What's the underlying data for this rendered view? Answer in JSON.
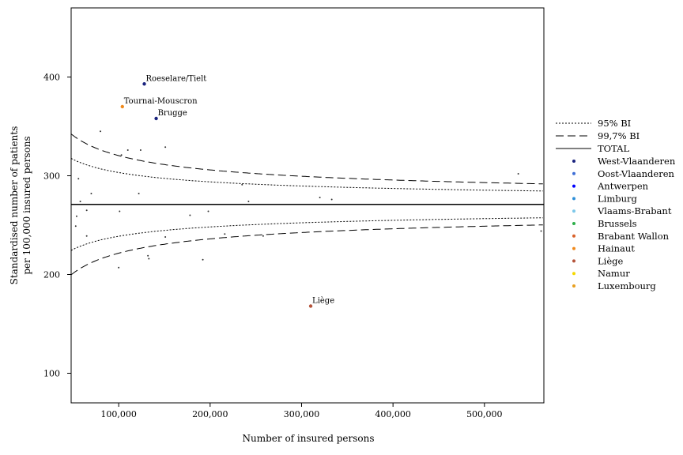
{
  "chart_data": {
    "type": "scatter",
    "title": "",
    "xlabel": "Number of insured persons",
    "ylabel_line1": "Standardised number of patients",
    "ylabel_line2": "per 100,000 insured persons",
    "xlim": [
      48000,
      565000
    ],
    "ylim": [
      70,
      470
    ],
    "x_ticks": [
      {
        "value": 100000,
        "label": "100,000"
      },
      {
        "value": 200000,
        "label": "200,000"
      },
      {
        "value": 300000,
        "label": "300,000"
      },
      {
        "value": 400000,
        "label": "400,000"
      },
      {
        "value": 500000,
        "label": "500,000"
      }
    ],
    "y_ticks": [
      {
        "value": 100,
        "label": "100"
      },
      {
        "value": 200,
        "label": "200"
      },
      {
        "value": 300,
        "label": "300"
      },
      {
        "value": 400,
        "label": "400"
      }
    ],
    "total": 271,
    "legend": {
      "placement": "right",
      "lines": [
        {
          "key": "ci95",
          "label": "95% BI",
          "dash": "2,2"
        },
        {
          "key": "ci997",
          "label": "99,7% BI",
          "dash": "10,5"
        },
        {
          "key": "total",
          "label": "TOTAL",
          "dash": ""
        }
      ],
      "provinces": [
        {
          "label": "West-Vlaanderen",
          "color": "#1a237e"
        },
        {
          "label": "Oost-Vlaanderen",
          "color": "#3f6fd6"
        },
        {
          "label": "Antwerpen",
          "color": "#0000ff"
        },
        {
          "label": "Limburg",
          "color": "#2e8fd8"
        },
        {
          "label": "Vlaams-Brabant",
          "color": "#7ec8ea"
        },
        {
          "label": "Brussels",
          "color": "#2eaf4a"
        },
        {
          "label": "Brabant Wallon",
          "color": "#d9622b"
        },
        {
          "label": "Hainaut",
          "color": "#f08a1c"
        },
        {
          "label": "Liège",
          "color": "#b5533a"
        },
        {
          "label": "Namur",
          "color": "#f5d800"
        },
        {
          "label": "Luxembourg",
          "color": "#e8a020"
        }
      ]
    },
    "labeled_points": [
      {
        "label": "Roeselare/Tielt",
        "x": 128000,
        "y": 393,
        "color": "#1a237e"
      },
      {
        "label": "Tournai-Mouscron",
        "x": 104000,
        "y": 370,
        "color": "#f08a1c"
      },
      {
        "label": "Brugge",
        "x": 141000,
        "y": 358,
        "color": "#1a237e"
      },
      {
        "label": "Liège",
        "x": 310000,
        "y": 168,
        "color": "#b5533a"
      }
    ],
    "points": [
      {
        "x": 80000,
        "y": 345
      },
      {
        "x": 103000,
        "y": 321
      },
      {
        "x": 110000,
        "y": 326
      },
      {
        "x": 124000,
        "y": 326
      },
      {
        "x": 151000,
        "y": 329
      },
      {
        "x": 56000,
        "y": 297
      },
      {
        "x": 58000,
        "y": 274
      },
      {
        "x": 70000,
        "y": 282
      },
      {
        "x": 122000,
        "y": 282
      },
      {
        "x": 235000,
        "y": 291
      },
      {
        "x": 242000,
        "y": 274
      },
      {
        "x": 320000,
        "y": 278
      },
      {
        "x": 333000,
        "y": 276
      },
      {
        "x": 537000,
        "y": 302
      },
      {
        "x": 54000,
        "y": 259
      },
      {
        "x": 53000,
        "y": 249
      },
      {
        "x": 65000,
        "y": 265
      },
      {
        "x": 101000,
        "y": 264
      },
      {
        "x": 178000,
        "y": 260
      },
      {
        "x": 198000,
        "y": 264
      },
      {
        "x": 65000,
        "y": 239
      },
      {
        "x": 151000,
        "y": 238
      },
      {
        "x": 216000,
        "y": 241
      },
      {
        "x": 258000,
        "y": 239
      },
      {
        "x": 562000,
        "y": 244
      },
      {
        "x": 132000,
        "y": 219
      },
      {
        "x": 133000,
        "y": 216
      },
      {
        "x": 192000,
        "y": 215
      },
      {
        "x": 100000,
        "y": 207
      }
    ]
  }
}
